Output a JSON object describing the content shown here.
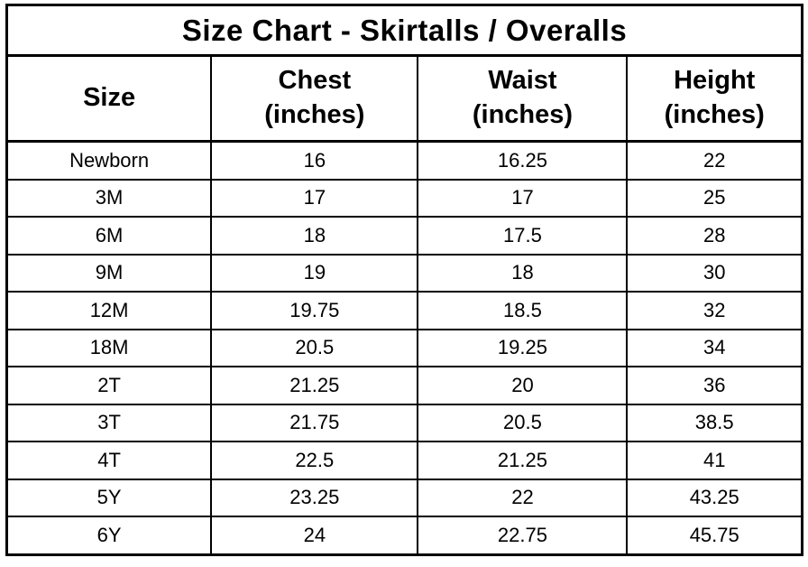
{
  "table": {
    "title": "Size Chart - Skirtalls / Overalls",
    "headers": [
      "Size",
      "Chest\n(inches)",
      "Waist\n(inches)",
      "Height\n(inches)"
    ]
  },
  "chart_data": {
    "type": "table",
    "title": "Size Chart - Skirtalls / Overalls",
    "columns": [
      "Size",
      "Chest (inches)",
      "Waist (inches)",
      "Height (inches)"
    ],
    "rows": [
      [
        "Newborn",
        "16",
        "16.25",
        "22"
      ],
      [
        "3M",
        "17",
        "17",
        "25"
      ],
      [
        "6M",
        "18",
        "17.5",
        "28"
      ],
      [
        "9M",
        "19",
        "18",
        "30"
      ],
      [
        "12M",
        "19.75",
        "18.5",
        "32"
      ],
      [
        "18M",
        "20.5",
        "19.25",
        "34"
      ],
      [
        "2T",
        "21.25",
        "20",
        "36"
      ],
      [
        "3T",
        "21.75",
        "20.5",
        "38.5"
      ],
      [
        "4T",
        "22.5",
        "21.25",
        "41"
      ],
      [
        "5Y",
        "23.25",
        "22",
        "43.25"
      ],
      [
        "6Y",
        "24",
        "22.75",
        "45.75"
      ]
    ],
    "layout": {
      "grid": true,
      "header_row": true,
      "title_row_spans_all_columns": true
    },
    "accent_color": "#000000",
    "background_color": "#ffffff"
  }
}
